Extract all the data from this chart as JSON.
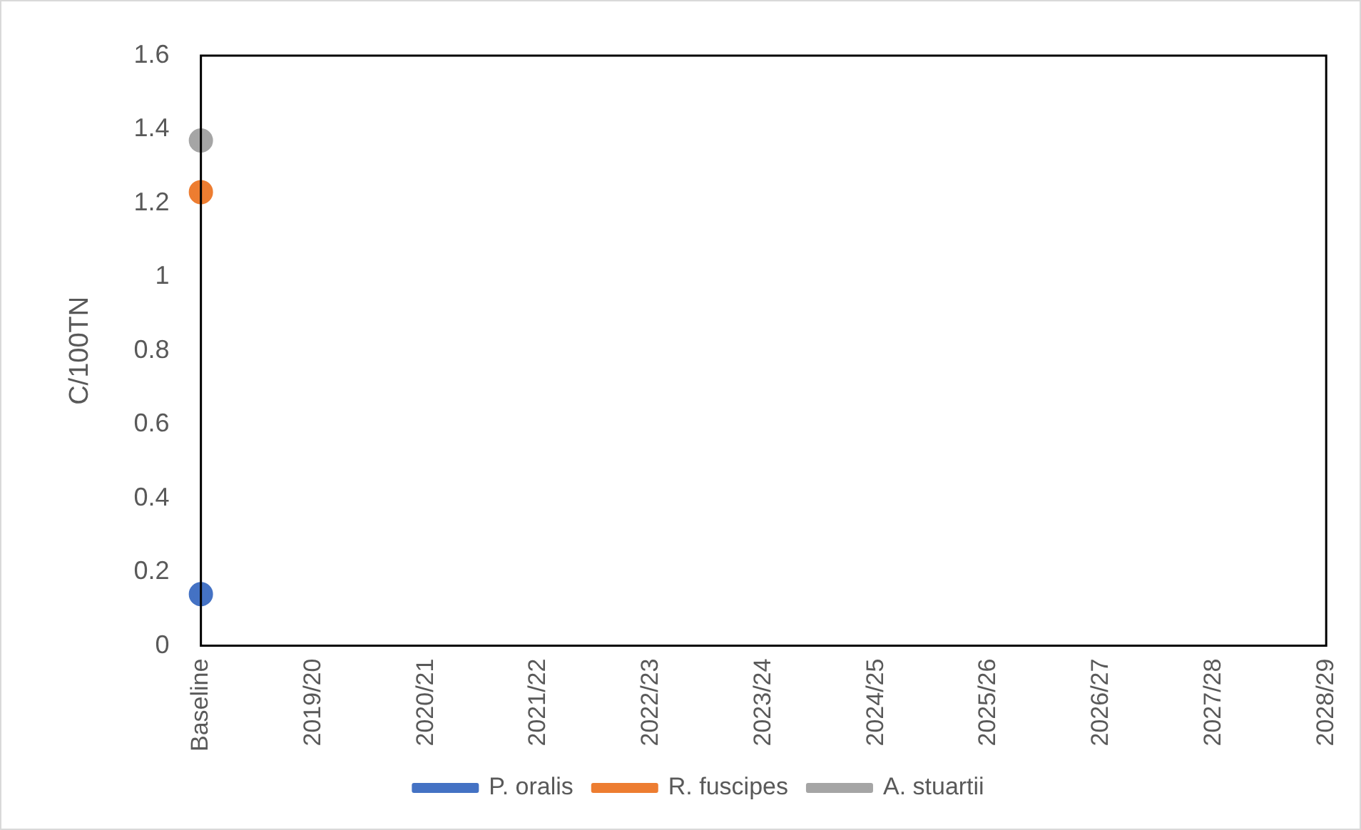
{
  "chart_data": {
    "type": "line",
    "ylabel": "C/100TN",
    "categories": [
      "Baseline",
      "2019/20",
      "2020/21",
      "2021/22",
      "2022/23",
      "2023/24",
      "2024/25",
      "2025/26",
      "2026/27",
      "2027/28",
      "2028/29"
    ],
    "series": [
      {
        "name": "P. oralis",
        "color": "#4472c4",
        "values": [
          0.14,
          null,
          null,
          null,
          null,
          null,
          null,
          null,
          null,
          null,
          null
        ]
      },
      {
        "name": "R. fuscipes",
        "color": "#ed7d31",
        "values": [
          1.23,
          null,
          null,
          null,
          null,
          null,
          null,
          null,
          null,
          null,
          null
        ]
      },
      {
        "name": "A. stuartii",
        "color": "#a5a5a5",
        "values": [
          1.37,
          null,
          null,
          null,
          null,
          null,
          null,
          null,
          null,
          null,
          null
        ]
      }
    ],
    "ylim": [
      0,
      1.6
    ],
    "yticks": [
      0,
      0.2,
      0.4,
      0.6,
      0.8,
      1,
      1.2,
      1.4,
      1.6
    ],
    "grid": false,
    "legend": "bottom",
    "marker": "circle",
    "line_style": "solid"
  }
}
